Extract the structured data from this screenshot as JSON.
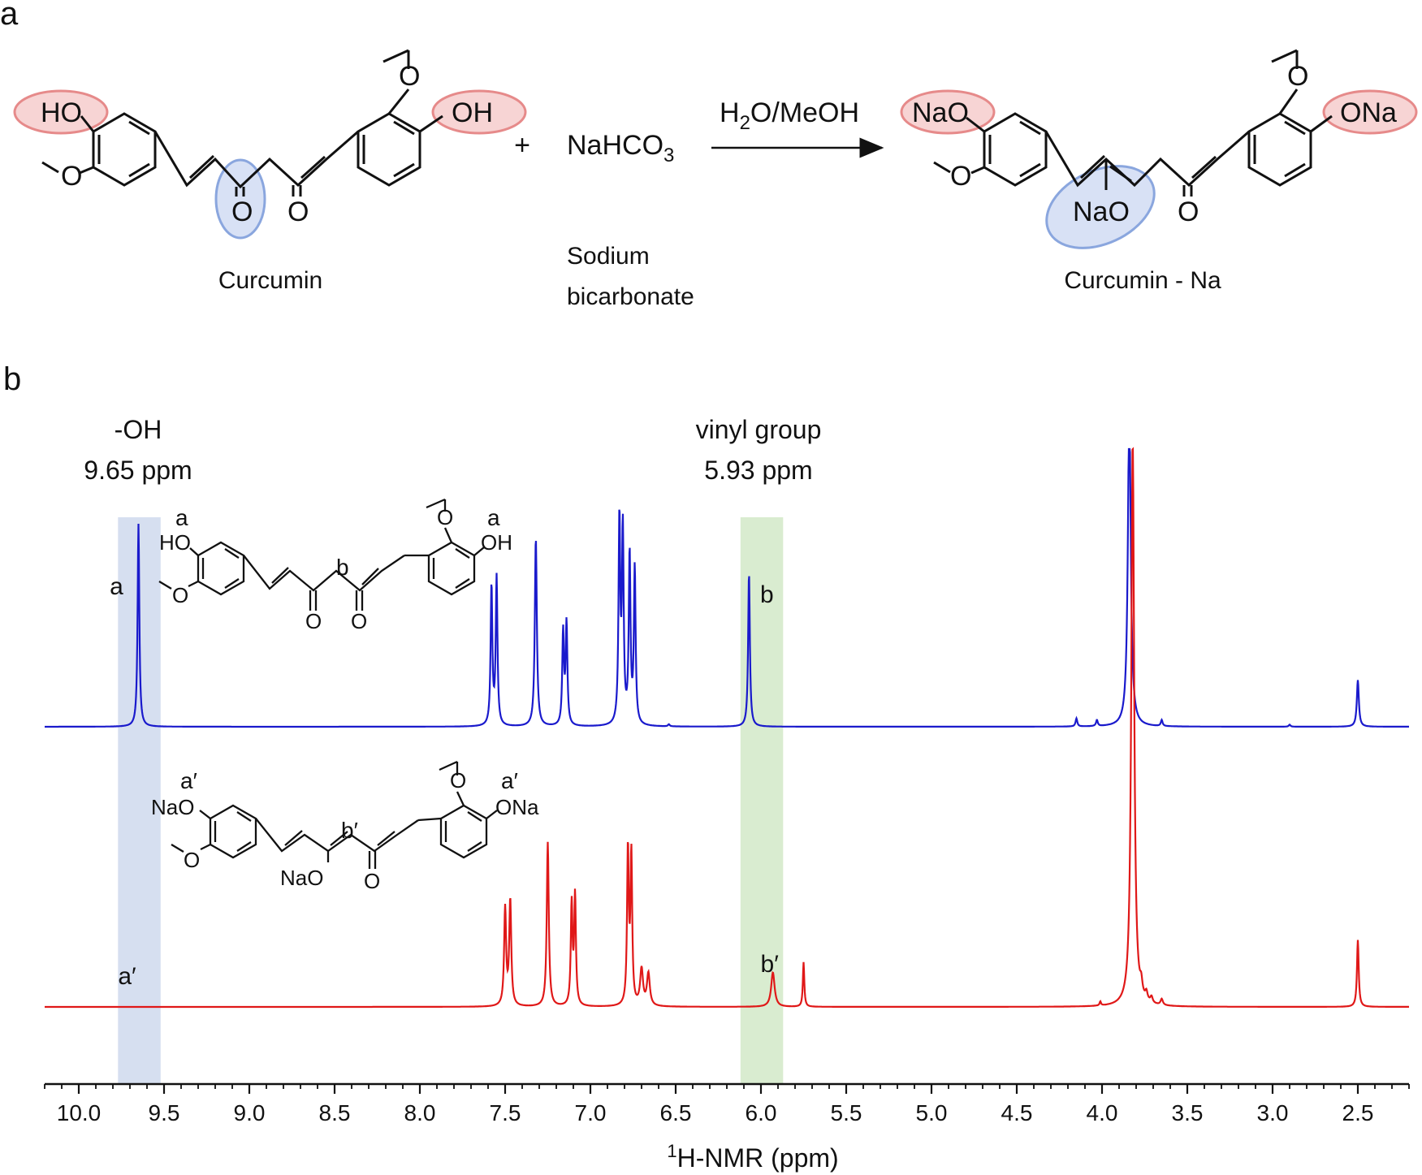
{
  "panel_a": {
    "panel_label": "a",
    "reactant_name": "Curcumin",
    "reagent_formula": "NaHCO",
    "reagent_sub": "3",
    "reagent_name_line1": "Sodium",
    "reagent_name_line2": "bicarbonate",
    "plus": "+",
    "conditions_h": "H",
    "conditions_sub": "2",
    "conditions_rest": "O/MeOH",
    "product_name": "Curcumin  - Na",
    "atoms": {
      "HO": "HO",
      "OH": "OH",
      "O": "O",
      "NaO": "NaO",
      "ONa": "ONa"
    }
  },
  "panel_b": {
    "panel_label": "b",
    "oh_label_line1": "-OH",
    "oh_label_line2": "9.65 ppm",
    "vinyl_label_line1": "vinyl group",
    "vinyl_label_line2": "5.93 ppm",
    "peak_labels": {
      "a": "a",
      "b": "b",
      "a_prime": "a′",
      "b_prime": "b′"
    },
    "colors": {
      "curcumin": "#1a1acc",
      "curcumin_na": "#e01818",
      "oh_band": "#d6dff0",
      "vinyl_band": "#d9ecd0",
      "oh_ring": "#e68a8a",
      "enol_ring": "#8aa6de"
    }
  },
  "chart_data": {
    "type": "line",
    "xlabel_sup": "1",
    "xlabel": "H-NMR (ppm)",
    "x_reversed": true,
    "xlim": [
      10.2,
      2.2
    ],
    "xticks": [
      "10.0",
      "9.5",
      "9.0",
      "8.5",
      "8.0",
      "7.5",
      "7.0",
      "6.5",
      "6.0",
      "5.5",
      "5.0",
      "4.5",
      "4.0",
      "3.5",
      "3.0",
      "2.5"
    ],
    "highlight_bands": [
      {
        "from": 9.77,
        "to": 9.52
      },
      {
        "from": 6.12,
        "to": 5.87
      }
    ],
    "series": [
      {
        "id": "curcumin",
        "peaks": [
          [
            9.65,
            1.0,
            0.006
          ],
          [
            7.58,
            0.69,
            0.006
          ],
          [
            7.55,
            0.73,
            0.006
          ],
          [
            7.32,
            0.93,
            0.007
          ],
          [
            7.16,
            0.46,
            0.006
          ],
          [
            7.14,
            0.5,
            0.006
          ],
          [
            6.83,
            1.01,
            0.006
          ],
          [
            6.81,
            0.95,
            0.006
          ],
          [
            6.77,
            0.84,
            0.006
          ],
          [
            6.74,
            0.77,
            0.006
          ],
          [
            6.54,
            0.01,
            0.006
          ],
          [
            6.07,
            0.76,
            0.006
          ],
          [
            4.15,
            0.04,
            0.006
          ],
          [
            4.03,
            0.03,
            0.006
          ],
          [
            3.84,
            1.6,
            0.01
          ],
          [
            3.65,
            0.03,
            0.006
          ],
          [
            2.9,
            0.01,
            0.006
          ],
          [
            2.5,
            0.23,
            0.007
          ]
        ]
      },
      {
        "id": "curcumin_na",
        "peaks": [
          [
            7.5,
            0.48,
            0.007
          ],
          [
            7.47,
            0.52,
            0.007
          ],
          [
            7.25,
            0.81,
            0.007
          ],
          [
            7.11,
            0.5,
            0.006
          ],
          [
            7.09,
            0.54,
            0.006
          ],
          [
            6.78,
            0.77,
            0.006
          ],
          [
            6.76,
            0.74,
            0.006
          ],
          [
            6.7,
            0.18,
            0.01
          ],
          [
            6.66,
            0.16,
            0.01
          ],
          [
            5.93,
            0.17,
            0.012
          ],
          [
            5.75,
            0.22,
            0.005
          ],
          [
            4.01,
            0.02,
            0.005
          ],
          [
            3.82,
            2.8,
            0.01
          ],
          [
            3.77,
            0.06,
            0.008
          ],
          [
            3.74,
            0.04,
            0.008
          ],
          [
            3.71,
            0.03,
            0.008
          ],
          [
            3.65,
            0.03,
            0.008
          ],
          [
            2.5,
            0.33,
            0.006
          ]
        ]
      }
    ]
  }
}
